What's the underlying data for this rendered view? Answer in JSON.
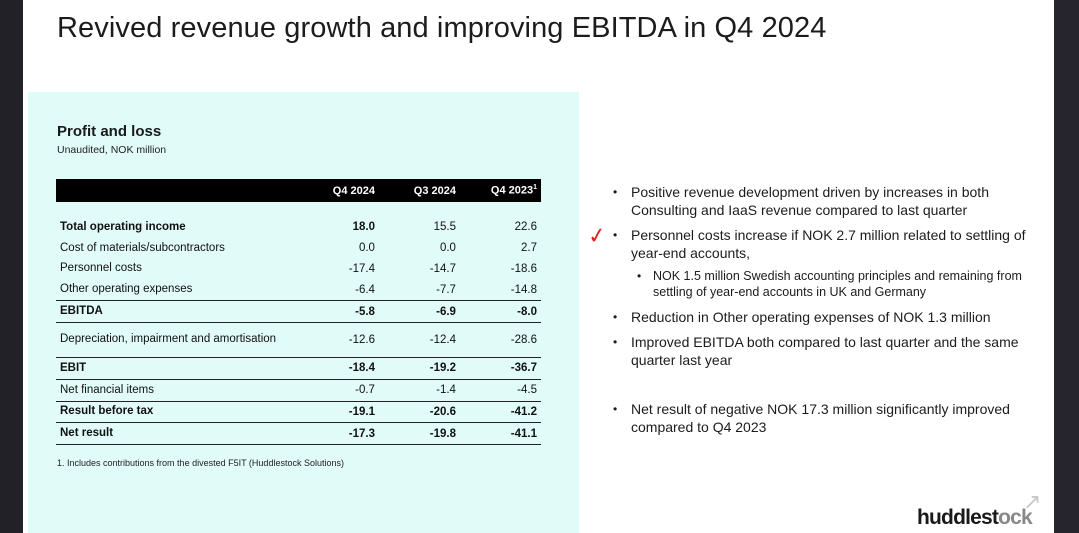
{
  "slide": {
    "title": "Revived revenue growth and improving EBITDA in Q4 2024"
  },
  "table_section": {
    "title": "Profit and loss",
    "subtitle": "Unaudited, NOK million",
    "headers": [
      "",
      "Q4 2024",
      "Q3 2024",
      "Q4 2023"
    ],
    "header_footnote_marker": "1",
    "rows": [
      {
        "label": "Total operating income",
        "values": [
          "18.0",
          "15.5",
          "22.6"
        ]
      },
      {
        "label": "Cost of materials/subcontractors",
        "values": [
          "0.0",
          "0.0",
          "2.7"
        ]
      },
      {
        "label": "Personnel costs",
        "values": [
          "-17.4",
          "-14.7",
          "-18.6"
        ]
      },
      {
        "label": "Other operating expenses",
        "values": [
          "-6.4",
          "-7.7",
          "-14.8"
        ]
      },
      {
        "label": "EBITDA",
        "values": [
          "-5.8",
          "-6.9",
          "-8.0"
        ]
      },
      {
        "label": "Depreciation, impairment and amortisation",
        "values": [
          "-12.6",
          "-12.4",
          "-28.6"
        ]
      },
      {
        "label": "EBIT",
        "values": [
          "-18.4",
          "-19.2",
          "-36.7"
        ]
      },
      {
        "label": "Net financial items",
        "values": [
          "-0.7",
          "-1.4",
          "-4.5"
        ]
      },
      {
        "label": "Result before tax",
        "values": [
          "-19.1",
          "-20.6",
          "-41.2"
        ]
      },
      {
        "label": "Net result",
        "values": [
          "-17.3",
          "-19.8",
          "-41.1"
        ]
      }
    ],
    "footnote": "1. Includes contributions from the divested F5IT (Huddlestock Solutions)"
  },
  "bullets": {
    "b1": "Positive revenue development driven by increases in both Consulting and IaaS revenue compared to last quarter",
    "b2": "Personnel costs increase if NOK 2.7 million related to settling of year-end accounts,",
    "b2_sub": "NOK 1.5 million Swedish accounting principles and remaining from settling of year-end accounts in UK and Germany",
    "b3": "Reduction in Other operating expenses of NOK 1.3 million",
    "b4": "Improved EBITDA both compared to last quarter and the same quarter last year",
    "b5": "Net result of negative NOK 17.3 million significantly improved compared to Q4 2023"
  },
  "annotation": {
    "mark_icon": "red-handwritten-check-icon",
    "color": "#e0201a"
  },
  "logo": {
    "text_main": "huddlest",
    "text_fade": "ock",
    "arrow_icon": "arrow-up-right-icon"
  },
  "colors": {
    "panel_bg": "#e0fbf8",
    "header_bg": "#000000"
  }
}
